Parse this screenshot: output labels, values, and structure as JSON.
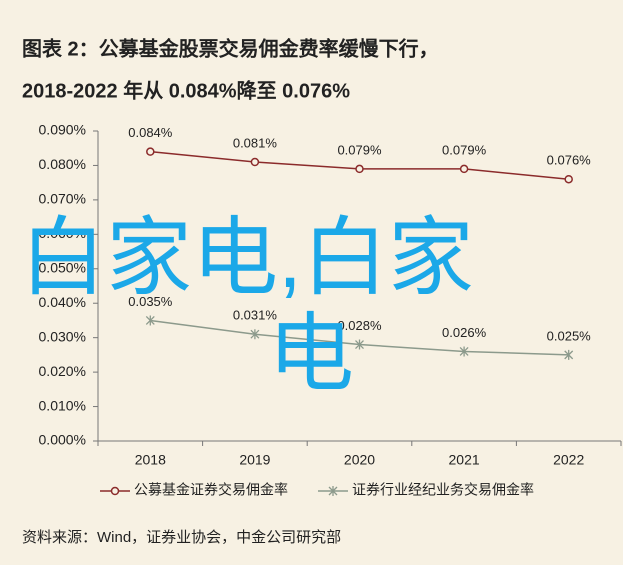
{
  "chart_data": {
    "type": "line",
    "title": "图表 2：公募基金股票交易佣金费率缓慢下行，",
    "subtitle": "2018-2022 年从 0.084%降至 0.076%",
    "categories": [
      "2018",
      "2019",
      "2020",
      "2021",
      "2022"
    ],
    "series": [
      {
        "name": "公募基金证券交易佣金率",
        "color": "#8b2b2b",
        "marker": "circle",
        "values": [
          0.084,
          0.081,
          0.079,
          0.079,
          0.076
        ],
        "value_labels": [
          "0.084%",
          "0.081%",
          "0.079%",
          "0.079%",
          "0.076%"
        ]
      },
      {
        "name": "证券行业经纪业务交易佣金率",
        "color": "#8c9a8c",
        "marker": "cross",
        "values": [
          0.035,
          0.031,
          0.028,
          0.026,
          0.025
        ],
        "value_labels": [
          "0.035%",
          "0.031%",
          "0.028%",
          "0.026%",
          "0.025%"
        ]
      }
    ],
    "ylim": [
      0,
      0.09
    ],
    "yticks": [
      {
        "value": 0,
        "label": "0.000%"
      },
      {
        "value": 0.01,
        "label": "0.010%"
      },
      {
        "value": 0.02,
        "label": "0.020%"
      },
      {
        "value": 0.03,
        "label": "0.030%"
      },
      {
        "value": 0.04,
        "label": "0.040%"
      },
      {
        "value": 0.05,
        "label": "0.050%"
      },
      {
        "value": 0.06,
        "label": "0.060%"
      },
      {
        "value": 0.07,
        "label": "0.070%"
      },
      {
        "value": 0.08,
        "label": "0.080%"
      },
      {
        "value": 0.09,
        "label": "0.090%"
      }
    ],
    "legend": "bottom",
    "grid": false,
    "source": "资料来源：Wind，证券业协会，中金公司研究部",
    "watermark": [
      "白家电,白家",
      "电"
    ]
  }
}
